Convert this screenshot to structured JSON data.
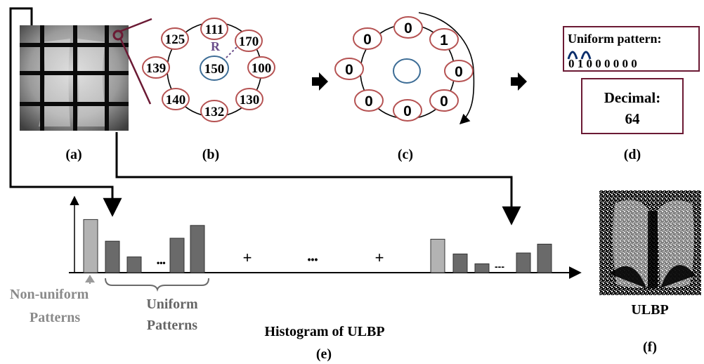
{
  "panels": {
    "a": {
      "label": "(a)"
    },
    "b": {
      "label": "(b)",
      "center": "150",
      "radius_label": "R",
      "neighbors": [
        "111",
        "170",
        "100",
        "130",
        "132",
        "140",
        "139",
        "125"
      ]
    },
    "c": {
      "label": "(c)",
      "bits": [
        "0",
        "1",
        "0",
        "0",
        "0",
        "0",
        "0",
        "0"
      ]
    },
    "d": {
      "label": "(d)",
      "uniform_title": "Uniform pattern:",
      "binary": "0 1 0 0 0 0 0 0",
      "decimal_title": "Decimal:",
      "decimal_value": "64"
    },
    "e": {
      "title": "Histogram of ULBP",
      "label": "(e)",
      "non_uniform_line1": "Non-uniform",
      "non_uniform_line2": "Patterns",
      "uniform_line1": "Uniform",
      "uniform_line2": "Patterns",
      "plus": "+",
      "dots": "•••",
      "small_dots": "•••",
      "dashes": "---"
    },
    "f": {
      "title": "ULBP",
      "label": "(f)"
    }
  },
  "colors": {
    "neighbor_stroke": "#b55252",
    "center_stroke": "#3d6d96",
    "radius_color": "#6a4d8a",
    "box_stroke": "#6b1a34",
    "bar_light": "#b3b3b3",
    "bar_dark": "#6a6a6a",
    "caption_gray": "#8a8a8a",
    "uniform_gray": "#666666"
  },
  "chart_data": [
    {
      "type": "bar",
      "series": [
        {
          "values": [
            5.4,
            3.2,
            1.6,
            3.5,
            4.8
          ]
        }
      ],
      "categories": [
        "",
        "",
        "",
        "",
        ""
      ]
    },
    {
      "type": "bar",
      "series": [
        {
          "values": [
            3.4,
            1.9,
            0.9,
            2.0,
            2.9
          ]
        }
      ],
      "categories": [
        "",
        "",
        "",
        "",
        ""
      ]
    }
  ]
}
